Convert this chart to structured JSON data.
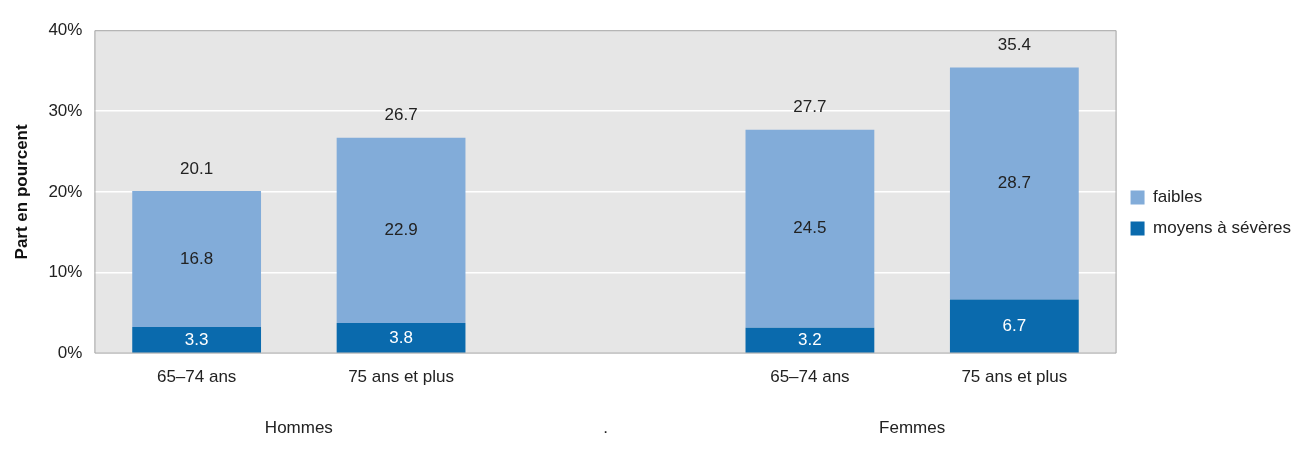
{
  "chart_data": {
    "type": "bar",
    "stacked": true,
    "ylabel": "Part en pourcent",
    "categories": [
      "65–74 ans",
      "75 ans et plus",
      null,
      "65–74 ans",
      "75 ans et plus"
    ],
    "series": [
      {
        "name": "moyens à sévères",
        "color": "#0a6aad",
        "values": [
          3.3,
          3.8,
          null,
          3.2,
          6.7
        ]
      },
      {
        "name": "faibles",
        "color": "#82acd9",
        "values": [
          16.8,
          22.9,
          null,
          24.5,
          28.7
        ]
      }
    ],
    "totals": [
      "20.1",
      "26.7",
      null,
      "27.7",
      "35.4"
    ],
    "data_labels": true,
    "ylim": [
      0,
      40
    ],
    "yticks": [
      {
        "value": 0,
        "label": "0%"
      },
      {
        "value": 10,
        "label": "10%"
      },
      {
        "value": 20,
        "label": "20%"
      },
      {
        "value": 30,
        "label": "30%"
      },
      {
        "value": 40,
        "label": "40%"
      }
    ],
    "grid": "y",
    "legend": "right",
    "annotations": [
      "Hommes",
      ".",
      "Femmes"
    ]
  }
}
